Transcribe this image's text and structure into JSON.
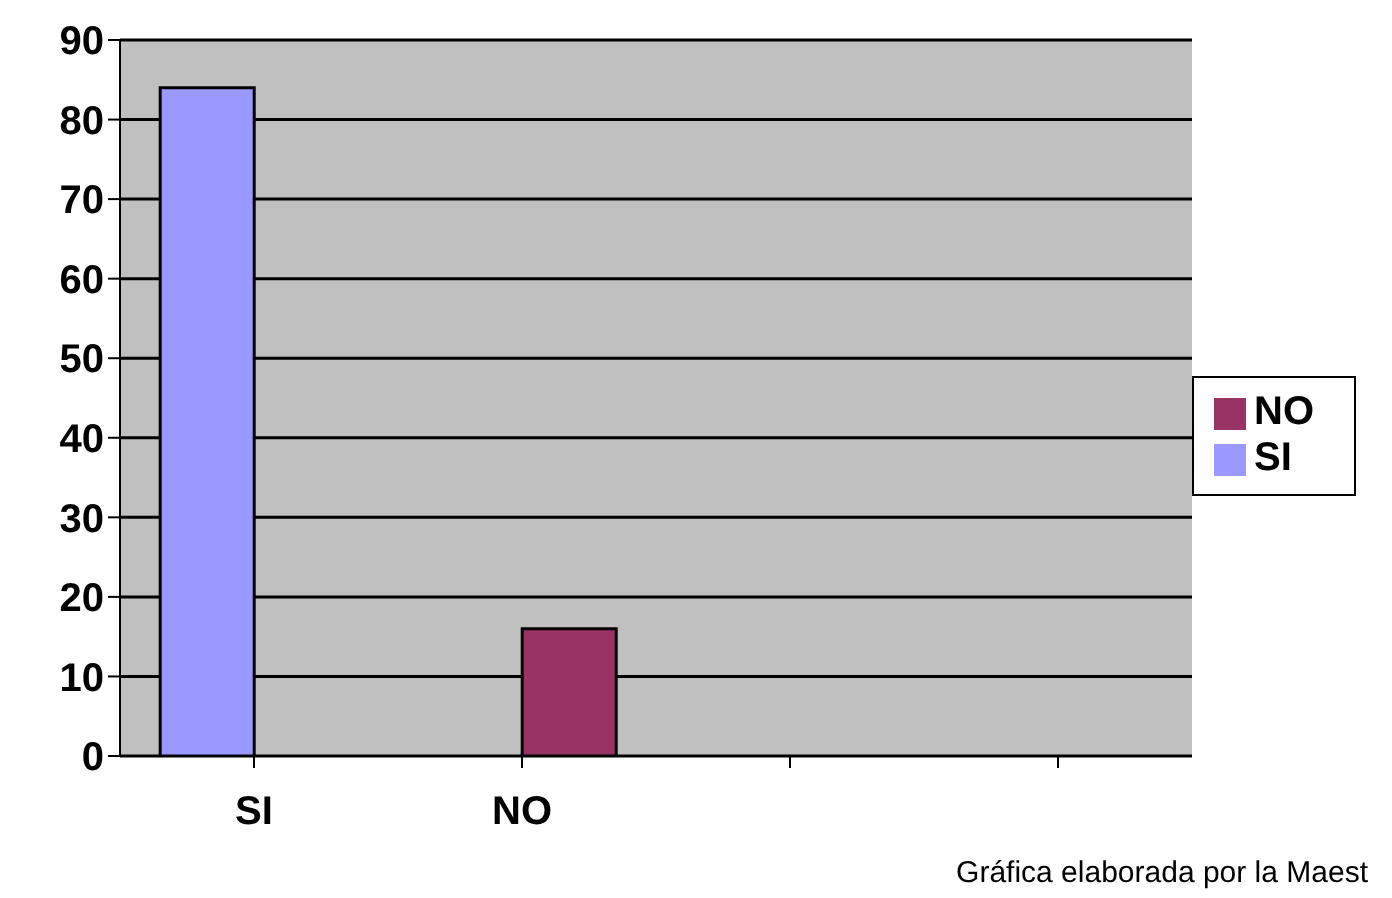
{
  "chart_data": {
    "type": "bar",
    "categories": [
      "SI",
      "NO",
      null,
      null
    ],
    "series": [
      {
        "name": "SI",
        "color": "#9999ff",
        "values": [
          84,
          null,
          null,
          null
        ]
      },
      {
        "name": "NO",
        "color": "#993366",
        "values": [
          null,
          16,
          null,
          null
        ]
      }
    ],
    "ylim": [
      0,
      90
    ],
    "yticks": [
      0,
      10,
      20,
      30,
      40,
      50,
      60,
      70,
      80,
      90
    ],
    "grid": "y",
    "legend": "right",
    "annotations": [
      "Gráfica elaborada por la Maest"
    ]
  }
}
